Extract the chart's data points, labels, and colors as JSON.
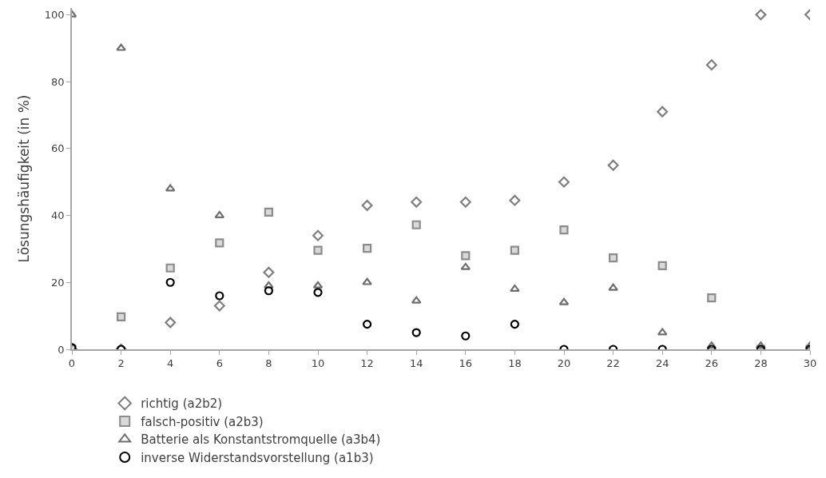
{
  "chart_data": {
    "type": "scatter",
    "ylabel": "Lösungshäufigkeit (in %)",
    "x": [
      0,
      2,
      4,
      6,
      8,
      10,
      12,
      14,
      16,
      18,
      20,
      22,
      24,
      26,
      28,
      30
    ],
    "xlim": [
      0,
      30
    ],
    "xticks": [
      0,
      2,
      4,
      6,
      8,
      10,
      12,
      14,
      16,
      18,
      20,
      22,
      24,
      26,
      28,
      30
    ],
    "ylim": [
      0,
      102
    ],
    "yticks": [
      0,
      20,
      40,
      60,
      80,
      100
    ],
    "grid": false,
    "legend": "bottom left",
    "series": [
      {
        "name": "richtig (a2b2)",
        "color": "#7f7f7f",
        "marker": "diamond",
        "values": [
          0,
          0,
          8,
          13,
          23,
          34,
          43,
          44,
          44,
          44.5,
          50,
          55,
          71,
          85,
          100,
          100
        ]
      },
      {
        "name": "falsch-positiv (a2b3)",
        "color": "#8c8c8c",
        "marker": "square",
        "values": [
          0,
          9.7,
          24.3,
          31.8,
          41,
          29.6,
          30.2,
          37.2,
          28,
          29.6,
          35.7,
          27.3,
          25,
          15.4,
          0,
          0
        ]
      },
      {
        "name": "Batterie als Konstantstromquelle (a3b4)",
        "color": "#6e6e6e",
        "marker": "triangle",
        "values": [
          100,
          90,
          48,
          40,
          19,
          19,
          20,
          14.5,
          24.5,
          18,
          14,
          18.3,
          5,
          1,
          1,
          1
        ]
      },
      {
        "name": "inverse Widerstandsvorstellung (a1b3)",
        "color": "#000000",
        "marker": "circle",
        "values": [
          0.5,
          0,
          20,
          16,
          17.5,
          17,
          7.5,
          5,
          4,
          7.5,
          0,
          0,
          0,
          0,
          0,
          0
        ]
      }
    ]
  }
}
